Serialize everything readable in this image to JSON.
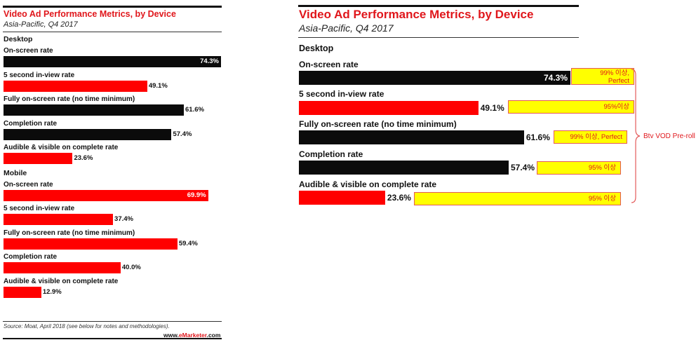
{
  "chart_data": [
    {
      "type": "bar",
      "title": "Video Ad Performance Metrics, by Device",
      "subtitle": "Asia-Pacific, Q4 2017",
      "xlim": [
        0,
        100
      ],
      "groups": [
        {
          "name": "Desktop",
          "color": "#0b0b0b",
          "categories": [
            "On-screen rate",
            "5 second in-view rate",
            "Fully on-screen rate (no time minimum)",
            "Completion rate",
            "Audible & visible on complete rate"
          ],
          "values": [
            74.3,
            49.1,
            61.6,
            57.4,
            23.6
          ],
          "labels": [
            "74.3%",
            "49.1%",
            "61.6%",
            "57.4%",
            "23.6%"
          ],
          "bar_colors": [
            "#0b0b0b",
            "#ff0000",
            "#0b0b0b",
            "#0b0b0b",
            "#ff0000"
          ]
        },
        {
          "name": "Mobile",
          "color": "#ff0000",
          "categories": [
            "On-screen rate",
            "5 second in-view rate",
            "Fully on-screen rate (no time minimum)",
            "Completion rate",
            "Audible & visible on complete rate"
          ],
          "values": [
            69.9,
            37.4,
            59.4,
            40.0,
            12.9
          ],
          "labels": [
            "69.9%",
            "37.4%",
            "59.4%",
            "40.0%",
            "12.9%"
          ],
          "bar_colors": [
            "#ff0000",
            "#ff0000",
            "#ff0000",
            "#ff0000",
            "#ff0000"
          ]
        }
      ],
      "source": "Source: Moat, April 2018 (see below for notes and methodologies).",
      "brand_prefix": "www.",
      "brand_mid": "eMarketer",
      "brand_suffix": ".com"
    },
    {
      "type": "bar",
      "title": "Video Ad Performance Metrics, by Device",
      "subtitle": "Asia-Pacific, Q4 2017",
      "xlim": [
        0,
        100
      ],
      "groups": [
        {
          "name": "Desktop",
          "categories": [
            "On-screen rate",
            "5 second in-view rate",
            "Fully on-screen rate (no time minimum)",
            "Completion rate",
            "Audible & visible on complete rate"
          ],
          "values": [
            74.3,
            49.1,
            61.6,
            57.4,
            23.6
          ],
          "labels": [
            "74.3%",
            "49.1%",
            "61.6%",
            "57.4%",
            "23.6%"
          ],
          "bar_colors": [
            "#0b0b0b",
            "#ff0000",
            "#0b0b0b",
            "#0b0b0b",
            "#ff0000"
          ],
          "targets": [
            [
              "99% 이상,",
              "Perfect"
            ],
            [
              "95%이상"
            ],
            [
              "99% 이상, Perfect"
            ],
            [
              "95% 이상"
            ],
            [
              "95% 이상"
            ]
          ]
        }
      ],
      "annotation": "Btv VOD Pre-roll",
      "colors": {
        "target_fill": "#ffff00",
        "target_text": "#e0161b"
      }
    }
  ]
}
